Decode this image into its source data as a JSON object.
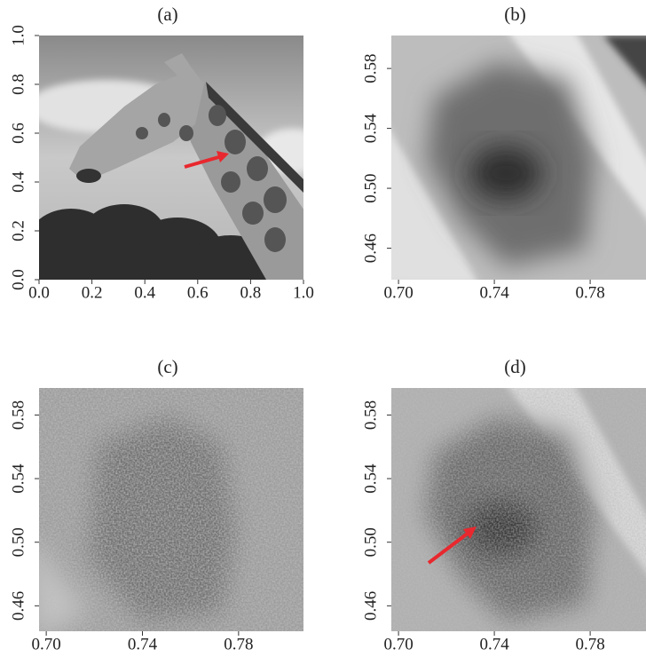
{
  "chart_data": [
    {
      "type": "image",
      "title": "(a)",
      "xlim": [
        0,
        1
      ],
      "ylim": [
        0,
        1
      ],
      "xticks": [
        {
          "value": 0,
          "label": "0.0"
        },
        0.2,
        0.4,
        0.6,
        0.8,
        {
          "value": 1,
          "label": "1.0"
        }
      ],
      "yticks": [
        {
          "value": 0,
          "label": "0.0"
        },
        0.2,
        0.4,
        0.6,
        0.8,
        {
          "value": 1,
          "label": "1.0"
        }
      ]
    },
    {
      "type": "image",
      "title": "(b)",
      "xlim": [
        0.697,
        0.807
      ],
      "ylim": [
        0.439,
        0.602
      ],
      "xticks": [
        {
          "value": 0.7,
          "label": "0.70"
        },
        0.74,
        0.78
      ],
      "yticks": [
        0.46,
        {
          "value": 0.5,
          "label": "0.50"
        },
        0.54,
        0.58
      ]
    },
    {
      "type": "image",
      "title": "(c)",
      "xlim": [
        0.697,
        0.807
      ],
      "ylim": [
        0.444,
        0.597
      ],
      "xticks": [
        {
          "value": 0.7,
          "label": "0.70"
        },
        0.74,
        0.78
      ],
      "yticks": [
        0.46,
        {
          "value": 0.5,
          "label": "0.50"
        },
        0.54,
        0.58
      ]
    },
    {
      "type": "image",
      "title": "(d)",
      "xlim": [
        0.697,
        0.807
      ],
      "ylim": [
        0.444,
        0.597
      ],
      "xticks": [
        {
          "value": 0.7,
          "label": "0.70"
        },
        0.74,
        0.78
      ],
      "yticks": [
        0.46,
        {
          "value": 0.5,
          "label": "0.50"
        },
        0.54,
        0.58
      ]
    }
  ]
}
